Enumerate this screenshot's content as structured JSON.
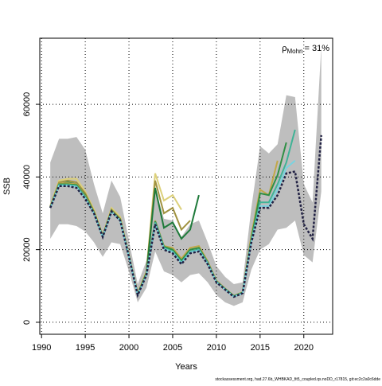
{
  "chart_data": {
    "type": "line",
    "title_annotation": {
      "symbol": "ρ",
      "subscript": "Mohn",
      "text": "= 31%"
    },
    "xlabel": "Years",
    "ylabel": "SSB",
    "footnote": "stockassessment.org, had.27.6b_WHBKAD_fit5_coupled.qs.noDD_r17815, git:ec2c2a0c6dde",
    "x": [
      1991,
      1992,
      1993,
      1994,
      1995,
      1996,
      1997,
      1998,
      1999,
      2000,
      2001,
      2002,
      2003,
      2004,
      2005,
      2006,
      2007,
      2008,
      2009,
      2010,
      2011,
      2012,
      2013,
      2014,
      2015,
      2016,
      2017,
      2018,
      2019,
      2020,
      2021,
      2022
    ],
    "band": {
      "color": "#bebebe",
      "upper": [
        44000,
        50500,
        50500,
        51000,
        47500,
        38000,
        30000,
        39000,
        34500,
        22500,
        10500,
        17000,
        37000,
        28500,
        28000,
        23500,
        27000,
        28000,
        22000,
        15500,
        12500,
        10500,
        11000,
        31500,
        48500,
        46500,
        49000,
        62500,
        62000,
        38000,
        33000,
        76000
      ],
      "lower": [
        23000,
        27000,
        27000,
        26500,
        25000,
        22000,
        18000,
        22000,
        21500,
        14000,
        5500,
        9500,
        19500,
        14000,
        13000,
        11000,
        13000,
        13500,
        11000,
        7500,
        5500,
        4500,
        5500,
        14500,
        20000,
        21500,
        25500,
        26000,
        28000,
        18500,
        16500,
        36000
      ]
    },
    "series": [
      {
        "color": "#dcd07a",
        "values": [
          32000,
          39000,
          39500,
          39500,
          36000,
          31000,
          24000,
          31500,
          29000,
          18500,
          8000,
          14000,
          41000,
          33500,
          35000,
          31000,
          null,
          null,
          null,
          null,
          null,
          null,
          null,
          null,
          null,
          null,
          null,
          null,
          null,
          null,
          null,
          null
        ]
      },
      {
        "color": "#a09240",
        "values": [
          31800,
          38500,
          39000,
          38500,
          35500,
          30500,
          23800,
          31000,
          28500,
          18300,
          7800,
          13800,
          39000,
          30000,
          31500,
          25500,
          28000,
          null,
          null,
          null,
          null,
          null,
          null,
          null,
          null,
          null,
          null,
          null,
          null,
          null,
          null,
          null
        ]
      },
      {
        "color": "#1e7a3a",
        "values": [
          31700,
          38000,
          38500,
          38000,
          35000,
          30300,
          23700,
          30800,
          28300,
          18200,
          7700,
          13500,
          37000,
          26000,
          27500,
          23000,
          25500,
          35000,
          null,
          null,
          null,
          null,
          null,
          null,
          null,
          null,
          null,
          null,
          null,
          null,
          null,
          null
        ]
      },
      {
        "color": "#c2a848",
        "values": [
          31600,
          38200,
          38300,
          38000,
          34800,
          30200,
          23600,
          30700,
          28200,
          18100,
          7600,
          13300,
          28000,
          21000,
          20500,
          17500,
          20500,
          21000,
          16800,
          11500,
          9300,
          7300,
          8300,
          24000,
          36500,
          35000,
          44500,
          null,
          null,
          null,
          null,
          null
        ]
      },
      {
        "color": "#2f8f45",
        "values": [
          31600,
          38000,
          38000,
          37800,
          34600,
          30100,
          23600,
          30600,
          28100,
          18100,
          7600,
          13200,
          27800,
          20800,
          20000,
          17000,
          20000,
          20500,
          16500,
          11300,
          9200,
          7200,
          8200,
          23000,
          35500,
          35000,
          40500,
          49500,
          null,
          null,
          null,
          null
        ]
      },
      {
        "color": "#3fb396",
        "values": [
          31500,
          37800,
          37800,
          37500,
          34400,
          30000,
          23500,
          30500,
          28000,
          18000,
          7500,
          13100,
          27500,
          20500,
          19500,
          16500,
          19500,
          20000,
          16300,
          11200,
          9100,
          7100,
          8100,
          22500,
          33000,
          33000,
          38000,
          44000,
          53000,
          null,
          null,
          null
        ]
      },
      {
        "color": "#7ad3e0",
        "values": [
          31500,
          37600,
          37700,
          37300,
          34200,
          30000,
          23500,
          30500,
          28000,
          18000,
          7500,
          13000,
          27200,
          20200,
          19300,
          16300,
          19300,
          19800,
          16200,
          11100,
          9000,
          7000,
          8000,
          22200,
          32000,
          32000,
          36500,
          42500,
          44500,
          null,
          null,
          null
        ]
      },
      {
        "color": "#222244",
        "dashed": true,
        "values": [
          31500,
          37500,
          37500,
          37000,
          34000,
          30000,
          23500,
          30500,
          28000,
          18000,
          7500,
          13000,
          27000,
          20000,
          19000,
          16000,
          19000,
          19500,
          16000,
          11000,
          9000,
          7000,
          8000,
          22000,
          31500,
          31500,
          35000,
          41000,
          41500,
          27000,
          23000,
          51500
        ]
      }
    ],
    "xlim": [
      1989.8,
      2023.3
    ],
    "ylim": [
      -3300,
      78200
    ],
    "xticks": [
      1990,
      1995,
      2000,
      2005,
      2010,
      2015,
      2020
    ],
    "yticks": [
      0,
      20000,
      40000,
      60000
    ],
    "grid": true
  }
}
